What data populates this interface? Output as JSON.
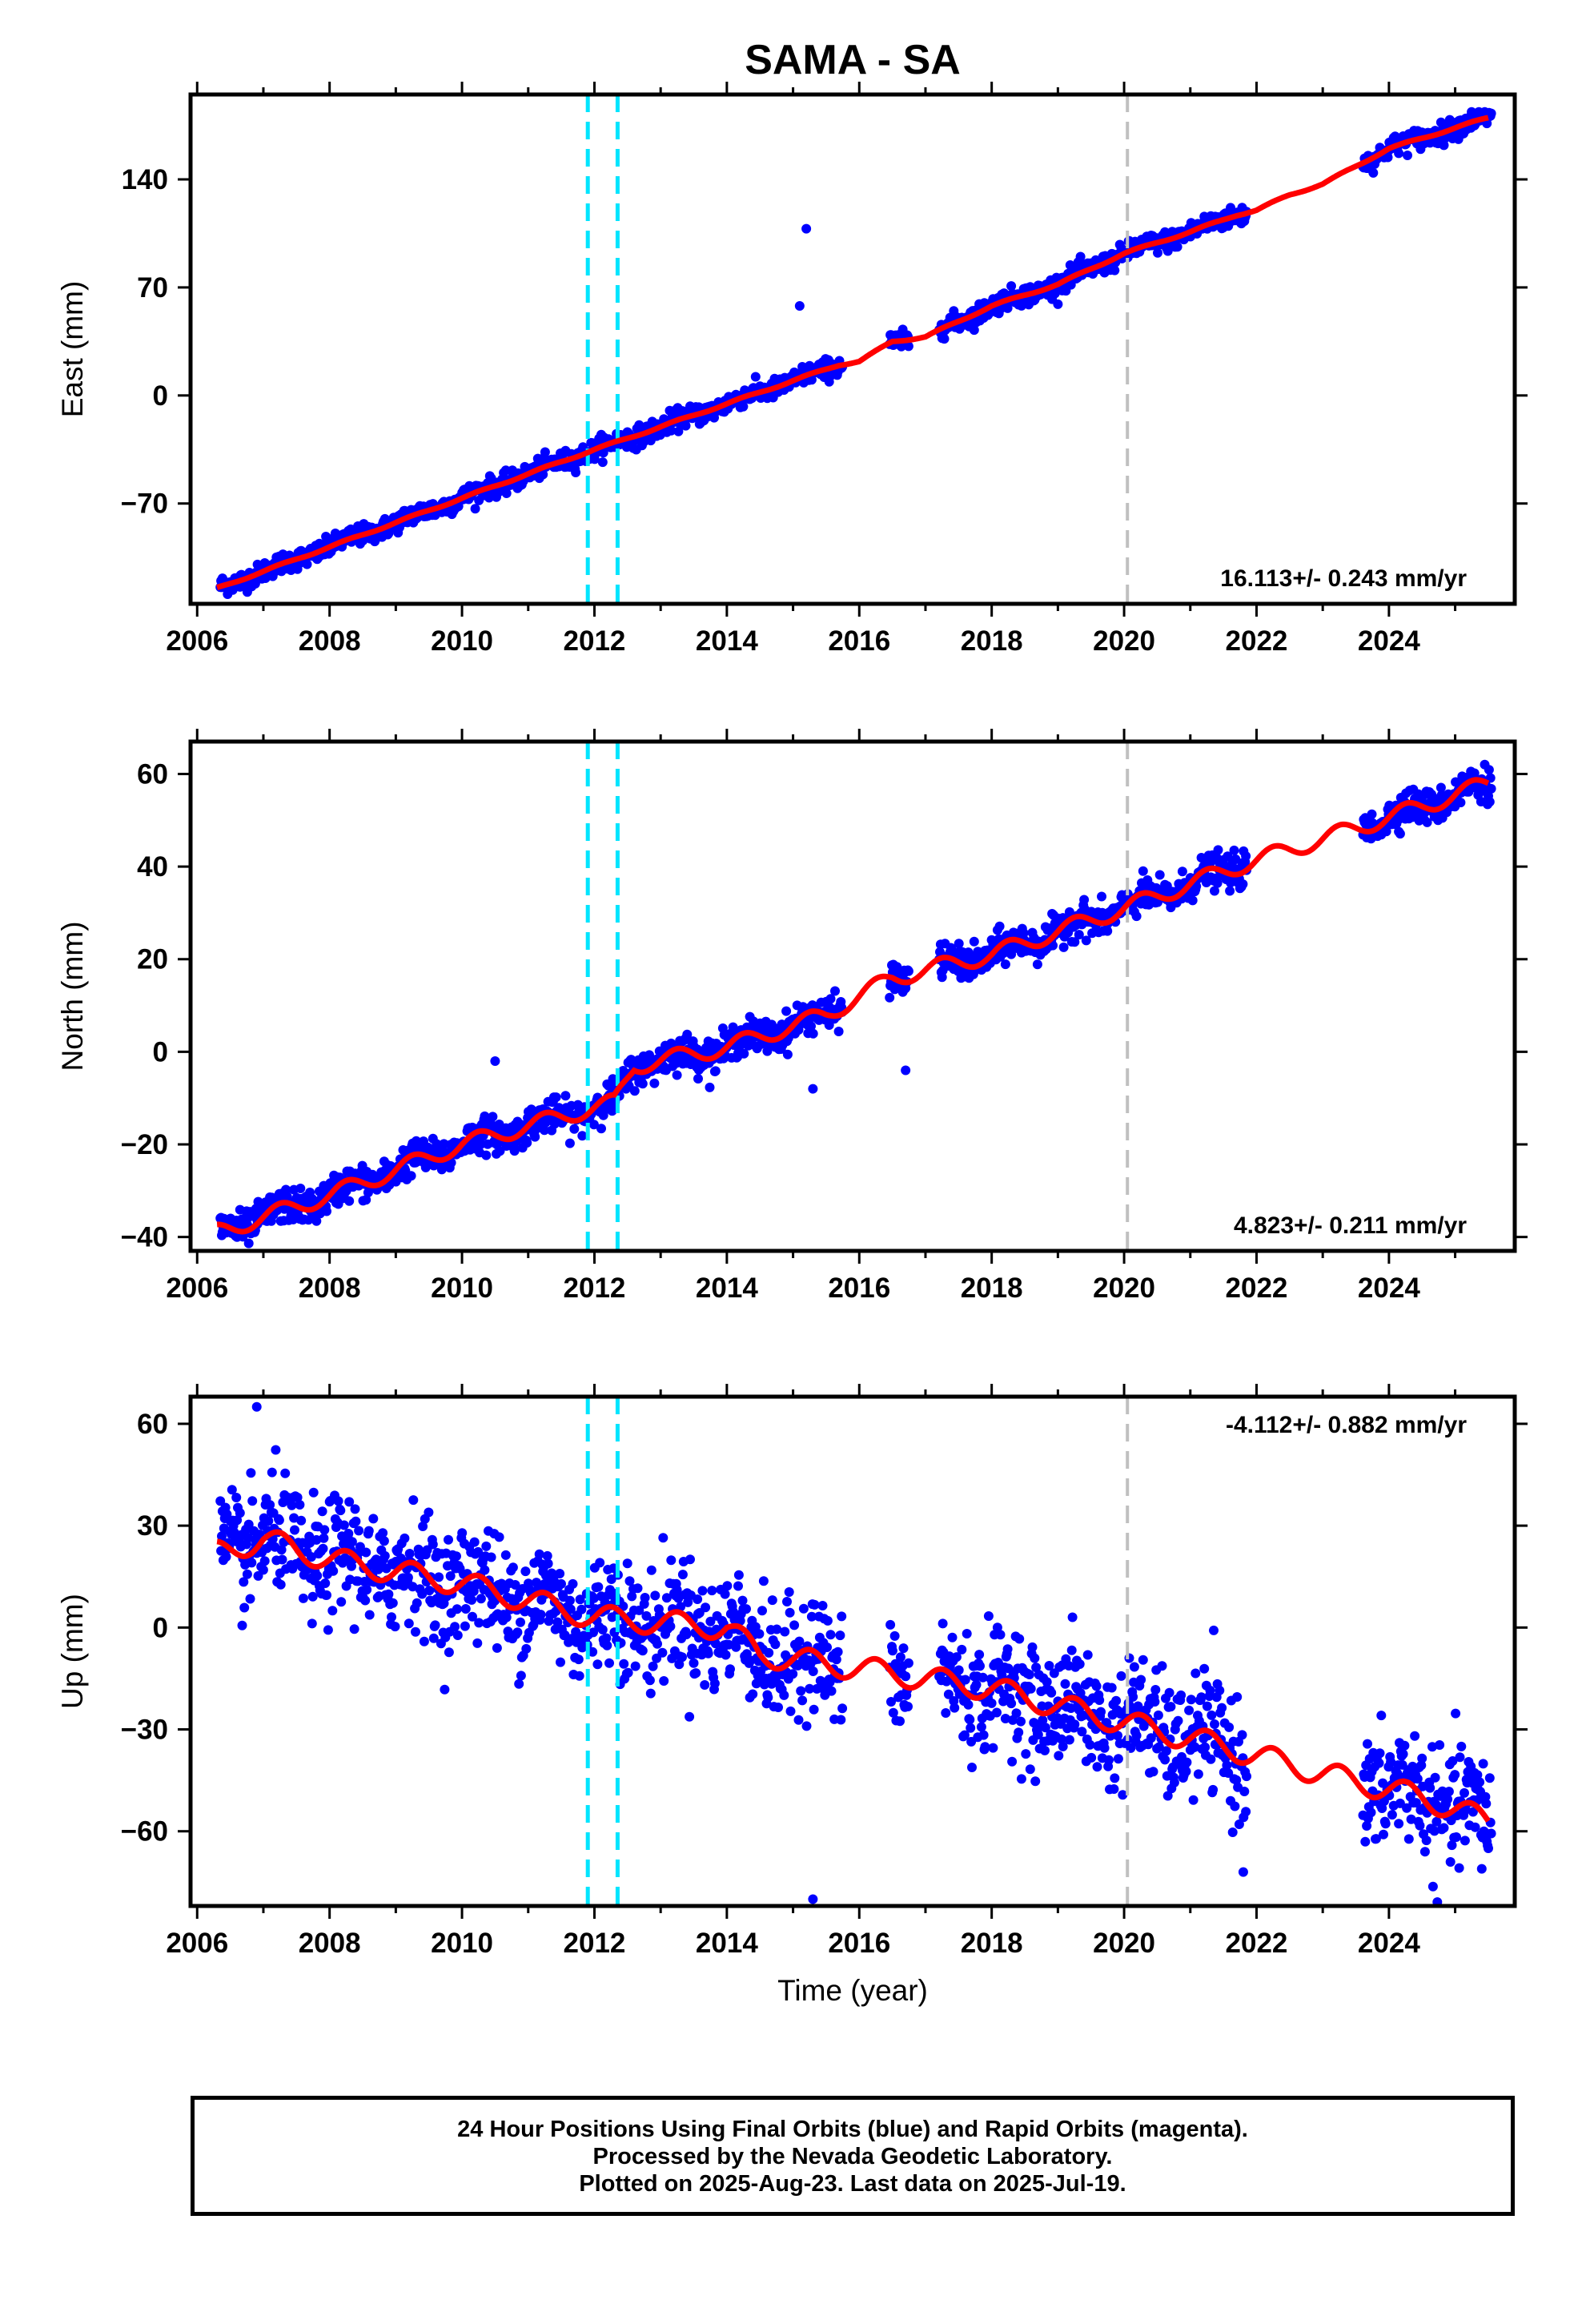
{
  "title": "SAMA - SA",
  "colors": {
    "final_orbits": "#0000ff",
    "model": "#ff0000",
    "equipment_change": "#00e5ff",
    "other_event": "#c0c0c0",
    "frame": "#000000"
  },
  "chart_data": [
    {
      "type": "scatter",
      "panel": "east",
      "ylabel": "East (mm)",
      "xlabel": "",
      "xlim": [
        2005.9,
        2025.9
      ],
      "ylim": [
        -135,
        195
      ],
      "yticks": [
        -70,
        0,
        70,
        140
      ],
      "xticks": [
        2006,
        2008,
        2010,
        2012,
        2014,
        2016,
        2018,
        2020,
        2022,
        2024
      ],
      "rate_label": "16.113+/- 0.243 mm/yr",
      "rate_placement": "bottom-right",
      "events": [
        {
          "x": 2011.9,
          "style": "cyan-dashed"
        },
        {
          "x": 2012.35,
          "style": "cyan-dashed"
        },
        {
          "x": 2020.05,
          "style": "gray-dashed"
        }
      ],
      "model": {
        "x": [
          2006.3,
          2012.0,
          2012.35,
          2015.7,
          2016.0,
          2016.5,
          2017.0,
          2018.0,
          2019.0,
          2020.0,
          2021.0,
          2021.7,
          2022.0,
          2022.5,
          2023.0,
          2024.0,
          2025.5
        ],
        "y": [
          -125,
          -35,
          -30,
          20,
          22,
          35,
          38,
          58,
          72,
          92,
          106,
          117,
          120,
          130,
          137,
          160,
          180
        ]
      },
      "outliers": [
        {
          "x": 2015.1,
          "y": 58
        },
        {
          "x": 2015.2,
          "y": 108
        }
      ],
      "rate": 16.113,
      "scatter_sd": 3.2
    },
    {
      "type": "scatter",
      "panel": "north",
      "ylabel": "North (mm)",
      "xlabel": "",
      "xlim": [
        2005.9,
        2025.9
      ],
      "ylim": [
        -43,
        67
      ],
      "yticks": [
        -40,
        -20,
        0,
        20,
        40,
        60
      ],
      "xticks": [
        2006,
        2008,
        2010,
        2012,
        2014,
        2016,
        2018,
        2020,
        2022,
        2024
      ],
      "rate_label": "4.823+/- 0.211 mm/yr",
      "rate_placement": "bottom-right",
      "events": [
        {
          "x": 2011.9,
          "style": "cyan-dashed"
        },
        {
          "x": 2012.35,
          "style": "cyan-dashed"
        },
        {
          "x": 2020.05,
          "style": "gray-dashed"
        }
      ],
      "model": {
        "x": [
          2006.3,
          2008.0,
          2010.0,
          2012.0,
          2012.3,
          2012.6,
          2014.0,
          2015.5,
          2016.5,
          2018.0,
          2020.0,
          2021.7,
          2023.0,
          2024.5,
          2025.5
        ],
        "y": [
          -39,
          -31,
          -20,
          -12,
          -11,
          -3,
          1,
          8,
          16,
          21,
          31,
          40,
          46,
          53,
          58
        ]
      },
      "outliers": [
        {
          "x": 2010.5,
          "y": -2
        },
        {
          "x": 2015.3,
          "y": -8
        },
        {
          "x": 2016.7,
          "y": -4
        }
      ],
      "rate": 4.823,
      "scatter_sd": 1.8
    },
    {
      "type": "scatter",
      "panel": "up",
      "ylabel": "Up (mm)",
      "xlabel": "Time (year)",
      "xlim": [
        2005.9,
        2025.9
      ],
      "ylim": [
        -82,
        68
      ],
      "yticks": [
        -60,
        -30,
        0,
        30,
        60
      ],
      "xticks": [
        2006,
        2008,
        2010,
        2012,
        2014,
        2016,
        2018,
        2020,
        2022,
        2024
      ],
      "rate_label": "-4.112+/- 0.882 mm/yr",
      "rate_placement": "top-right",
      "events": [
        {
          "x": 2011.9,
          "style": "cyan-dashed"
        },
        {
          "x": 2012.35,
          "style": "cyan-dashed"
        },
        {
          "x": 2020.05,
          "style": "gray-dashed"
        }
      ],
      "model": {
        "x": [
          2006.3,
          2007.0,
          2008.0,
          2010.0,
          2012.0,
          2014.0,
          2014.5,
          2016.0,
          2018.0,
          2020.0,
          2021.5,
          2023.0,
          2024.5,
          2025.5
        ],
        "y": [
          22,
          26,
          20,
          13,
          3,
          0,
          -8,
          -12,
          -18,
          -28,
          -35,
          -43,
          -50,
          -57
        ]
      },
      "outliers": [
        {
          "x": 2006.9,
          "y": 65
        },
        {
          "x": 2015.3,
          "y": -80
        },
        {
          "x": 2021.8,
          "y": -72
        }
      ],
      "rate": -4.112,
      "scatter_sd": 8.5
    }
  ],
  "footer": {
    "line1": "24 Hour Positions Using Final Orbits (blue) and Rapid Orbits (magenta).",
    "line2": "Processed by the Nevada Geodetic Laboratory.",
    "line3": "Plotted on 2025-Aug-23. Last data on 2025-Jul-19."
  }
}
